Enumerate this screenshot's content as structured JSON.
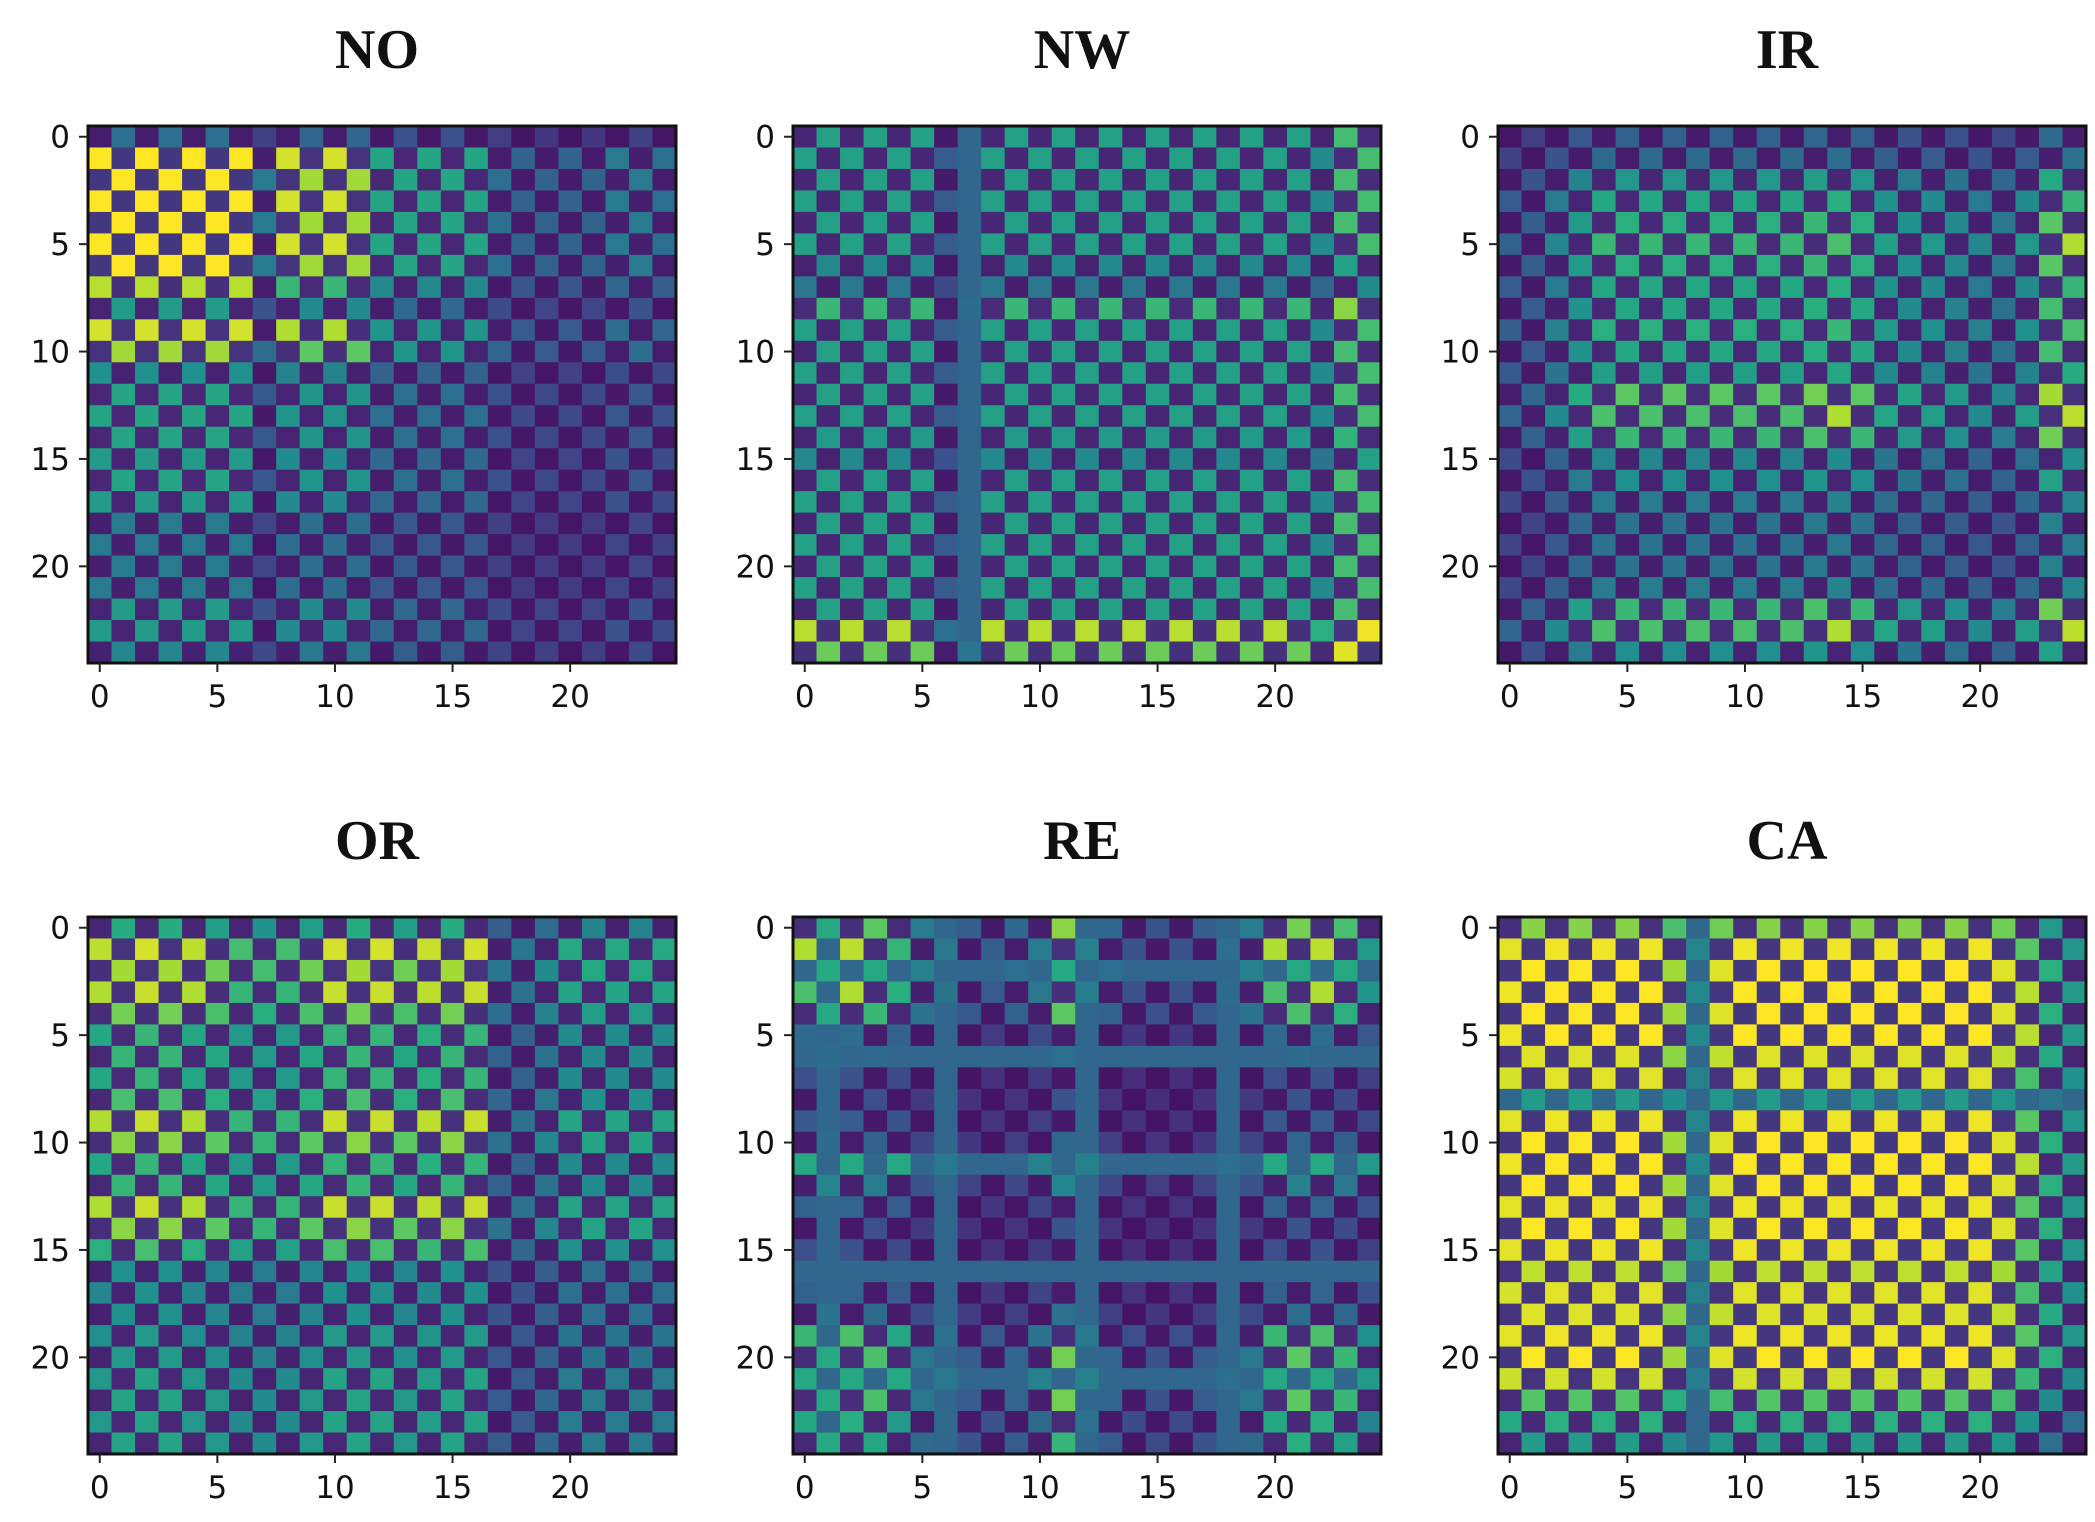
{
  "chart_data": [
    {
      "type": "heatmap",
      "title": "NO",
      "pattern": "NO",
      "size": [
        25,
        25
      ],
      "colormap": "viridis",
      "xlim": [
        -0.5,
        24.5
      ],
      "ylim": [
        24.5,
        -0.5
      ],
      "xticks": [
        0,
        5,
        10,
        15,
        20
      ],
      "yticks": [
        0,
        5,
        10,
        15,
        20
      ],
      "row_bands": [
        0.3,
        1,
        1,
        1,
        1,
        1,
        1,
        0.75,
        0.5,
        0.85,
        0.85,
        0.45,
        0.55,
        0.55,
        0.55,
        0.5,
        0.55,
        0.5,
        0.35,
        0.35,
        0.35,
        0.35,
        0.5,
        0.5,
        0.4
      ],
      "col_bands": [
        1,
        1,
        1,
        1,
        1,
        1,
        1,
        0.35,
        0.85,
        0.85,
        0.85,
        0.85,
        0.55,
        0.55,
        0.55,
        0.55,
        0.55,
        0.3,
        0.25,
        0.25,
        0.25,
        0.25,
        0.35,
        0.35,
        0.3
      ],
      "vertical_stripes": [],
      "horizontal_stripes": []
    },
    {
      "type": "heatmap",
      "title": "NW",
      "pattern": "NW",
      "size": [
        25,
        25
      ],
      "colormap": "viridis",
      "xlim": [
        -0.5,
        24.5
      ],
      "ylim": [
        24.5,
        -0.5
      ],
      "xticks": [
        0,
        5,
        10,
        15,
        20
      ],
      "yticks": [
        0,
        5,
        10,
        15,
        20
      ],
      "row_bands": [
        0.7,
        0.7,
        0.7,
        0.7,
        0.7,
        0.7,
        0.55,
        0.45,
        0.85,
        0.7,
        0.7,
        0.7,
        0.7,
        0.7,
        0.65,
        0.55,
        0.7,
        0.7,
        0.7,
        0.7,
        0.7,
        0.7,
        0.7,
        1,
        1
      ],
      "col_bands": [
        0.75,
        0.75,
        0.75,
        0.75,
        0.75,
        0.75,
        0.3,
        0.3,
        0.75,
        0.75,
        0.75,
        0.75,
        0.75,
        0.75,
        0.75,
        0.75,
        0.75,
        0.75,
        0.75,
        0.75,
        0.75,
        0.75,
        0.6,
        0.95,
        0.95
      ],
      "vertical_stripes": [
        7
      ],
      "horizontal_stripes": []
    },
    {
      "type": "heatmap",
      "title": "IR",
      "pattern": "IR",
      "size": [
        25,
        25
      ],
      "colormap": "viridis",
      "xlim": [
        -0.5,
        24.5
      ],
      "ylim": [
        24.5,
        -0.5
      ],
      "xticks": [
        0,
        5,
        10,
        15,
        20
      ],
      "yticks": [
        0,
        5,
        10,
        15,
        20
      ],
      "row_bands": [
        0.3,
        0.35,
        0.6,
        0.7,
        0.75,
        0.8,
        0.75,
        0.7,
        0.7,
        0.75,
        0.7,
        0.65,
        0.9,
        0.85,
        0.8,
        0.5,
        0.55,
        0.45,
        0.4,
        0.4,
        0.4,
        0.45,
        0.8,
        0.85,
        0.55
      ],
      "col_bands": [
        0.3,
        0.3,
        0.5,
        0.65,
        0.8,
        0.8,
        0.8,
        0.8,
        0.8,
        0.8,
        0.8,
        0.8,
        0.8,
        0.85,
        0.85,
        0.8,
        0.65,
        0.6,
        0.6,
        0.55,
        0.5,
        0.45,
        0.6,
        0.95,
        0.9
      ],
      "vertical_stripes": [],
      "horizontal_stripes": []
    },
    {
      "type": "heatmap",
      "title": "OR",
      "pattern": "OR",
      "size": [
        25,
        25
      ],
      "colormap": "viridis",
      "xlim": [
        -0.5,
        24.5
      ],
      "ylim": [
        24.5,
        -0.5
      ],
      "xticks": [
        0,
        5,
        10,
        15,
        20
      ],
      "yticks": [
        0,
        5,
        10,
        15,
        20
      ],
      "row_bands": [
        0.65,
        0.95,
        0.95,
        0.9,
        0.85,
        0.7,
        0.7,
        0.7,
        0.75,
        0.9,
        0.9,
        0.7,
        0.7,
        0.9,
        0.9,
        0.75,
        0.5,
        0.5,
        0.5,
        0.55,
        0.55,
        0.6,
        0.6,
        0.6,
        0.6
      ],
      "col_bands": [
        0.8,
        0.9,
        0.9,
        0.9,
        0.8,
        0.8,
        0.7,
        0.7,
        0.7,
        0.8,
        0.9,
        0.9,
        0.9,
        0.8,
        0.85,
        0.9,
        0.9,
        0.35,
        0.35,
        0.45,
        0.6,
        0.6,
        0.6,
        0.6,
        0.6
      ],
      "vertical_stripes": [],
      "horizontal_stripes": []
    },
    {
      "type": "heatmap",
      "title": "RE",
      "pattern": "RE",
      "size": [
        25,
        25
      ],
      "colormap": "viridis",
      "xlim": [
        -0.5,
        24.5
      ],
      "ylim": [
        24.5,
        -0.5
      ],
      "xticks": [
        0,
        5,
        10,
        15,
        20
      ],
      "yticks": [
        0,
        5,
        10,
        15,
        20
      ],
      "row_bands": [
        0.9,
        0.9,
        0.9,
        0.85,
        0.8,
        0.35,
        0.3,
        0.2,
        0.2,
        0.25,
        0.3,
        0.9,
        0.45,
        0.3,
        0.2,
        0.2,
        0.25,
        0.3,
        0.35,
        0.8,
        0.85,
        0.9,
        0.85,
        0.7,
        0.7
      ],
      "col_bands": [
        0.8,
        0.85,
        0.85,
        0.8,
        0.7,
        0.4,
        0.35,
        0.25,
        0.25,
        0.3,
        0.4,
        0.9,
        0.4,
        0.3,
        0.2,
        0.2,
        0.2,
        0.25,
        0.3,
        0.4,
        0.8,
        0.85,
        0.85,
        0.75,
        0.55
      ],
      "vertical_stripes": [
        1,
        6,
        12,
        18
      ],
      "horizontal_stripes": [
        2,
        6,
        11,
        16,
        21
      ]
    },
    {
      "type": "heatmap",
      "title": "CA",
      "pattern": "CA",
      "size": [
        25,
        25
      ],
      "colormap": "viridis",
      "xlim": [
        -0.5,
        24.5
      ],
      "ylim": [
        24.5,
        -0.5
      ],
      "xticks": [
        0,
        5,
        10,
        15,
        20
      ],
      "yticks": [
        0,
        5,
        10,
        15,
        20
      ],
      "row_bands": [
        0.8,
        0.95,
        1,
        1,
        1,
        1,
        0.95,
        0.9,
        0.5,
        0.95,
        1,
        1,
        1,
        0.95,
        1,
        0.95,
        0.9,
        0.9,
        0.95,
        0.95,
        1,
        0.85,
        0.7,
        0.6,
        0.5
      ],
      "col_bands": [
        0.95,
        1,
        1,
        1,
        1,
        1,
        1,
        0.85,
        0.4,
        0.95,
        1,
        1,
        1,
        1,
        1,
        1,
        1,
        1,
        1,
        1,
        1,
        0.95,
        0.75,
        0.6,
        0.5
      ],
      "vertical_stripes": [
        8
      ],
      "horizontal_stripes": [
        8
      ]
    }
  ]
}
